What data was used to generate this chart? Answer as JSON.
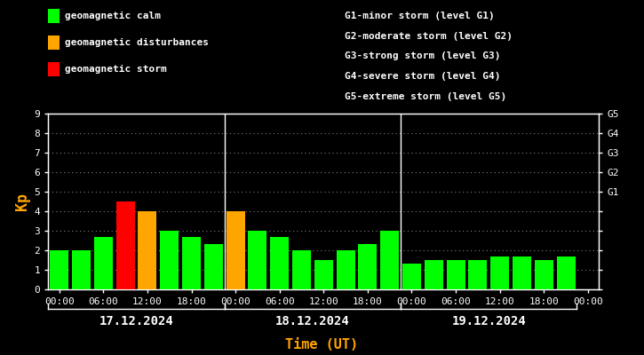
{
  "background_color": "#000000",
  "text_color": "#ffffff",
  "orange_color": "#ffa500",
  "bar_data": [
    {
      "idx": 0,
      "value": 2.0,
      "color": "#00ff00"
    },
    {
      "idx": 1,
      "value": 2.0,
      "color": "#00ff00"
    },
    {
      "idx": 2,
      "value": 2.7,
      "color": "#00ff00"
    },
    {
      "idx": 3,
      "value": 4.5,
      "color": "#ff0000"
    },
    {
      "idx": 4,
      "value": 4.0,
      "color": "#ffa500"
    },
    {
      "idx": 5,
      "value": 3.0,
      "color": "#00ff00"
    },
    {
      "idx": 6,
      "value": 2.7,
      "color": "#00ff00"
    },
    {
      "idx": 7,
      "value": 2.3,
      "color": "#00ff00"
    },
    {
      "idx": 8,
      "value": 4.0,
      "color": "#ffa500"
    },
    {
      "idx": 9,
      "value": 3.0,
      "color": "#00ff00"
    },
    {
      "idx": 10,
      "value": 2.7,
      "color": "#00ff00"
    },
    {
      "idx": 11,
      "value": 2.0,
      "color": "#00ff00"
    },
    {
      "idx": 12,
      "value": 1.5,
      "color": "#00ff00"
    },
    {
      "idx": 13,
      "value": 2.0,
      "color": "#00ff00"
    },
    {
      "idx": 14,
      "value": 2.3,
      "color": "#00ff00"
    },
    {
      "idx": 15,
      "value": 3.0,
      "color": "#00ff00"
    },
    {
      "idx": 16,
      "value": 1.3,
      "color": "#00ff00"
    },
    {
      "idx": 17,
      "value": 1.5,
      "color": "#00ff00"
    },
    {
      "idx": 18,
      "value": 1.5,
      "color": "#00ff00"
    },
    {
      "idx": 19,
      "value": 1.5,
      "color": "#00ff00"
    },
    {
      "idx": 20,
      "value": 1.7,
      "color": "#00ff00"
    },
    {
      "idx": 21,
      "value": 1.7,
      "color": "#00ff00"
    },
    {
      "idx": 22,
      "value": 1.5,
      "color": "#00ff00"
    },
    {
      "idx": 23,
      "value": 1.7,
      "color": "#00ff00"
    }
  ],
  "ylim": [
    0,
    9
  ],
  "yticks": [
    0,
    1,
    2,
    3,
    4,
    5,
    6,
    7,
    8,
    9
  ],
  "right_ytick_labels": [
    "",
    "",
    "",
    "",
    "",
    "G1",
    "G2",
    "G3",
    "G4",
    "G5"
  ],
  "xlabel": "Time (UT)",
  "ylabel": "Kp",
  "day_labels": [
    "17.12.2024",
    "18.12.2024",
    "19.12.2024"
  ],
  "xtick_positions": [
    0,
    2,
    4,
    6,
    8,
    10,
    12,
    14,
    16,
    18,
    20,
    22,
    24
  ],
  "xtick_labels": [
    "00:00",
    "06:00",
    "12:00",
    "18:00",
    "00:00",
    "06:00",
    "12:00",
    "18:00",
    "00:00",
    "06:00",
    "12:00",
    "18:00",
    "00:00"
  ],
  "day_dividers": [
    8,
    16
  ],
  "legend_items": [
    {
      "label": "geomagnetic calm",
      "color": "#00ff00"
    },
    {
      "label": "geomagnetic disturbances",
      "color": "#ffa500"
    },
    {
      "label": "geomagnetic storm",
      "color": "#ff0000"
    }
  ],
  "storm_levels": [
    "G1-minor storm (level G1)",
    "G2-moderate storm (level G2)",
    "G3-strong storm (level G3)",
    "G4-severe storm (level G4)",
    "G5-extreme storm (level G5)"
  ],
  "font_name": "monospace",
  "tick_fontsize": 8,
  "label_fontsize": 8,
  "bar_width": 0.85,
  "xlim": [
    -0.5,
    24.5
  ]
}
